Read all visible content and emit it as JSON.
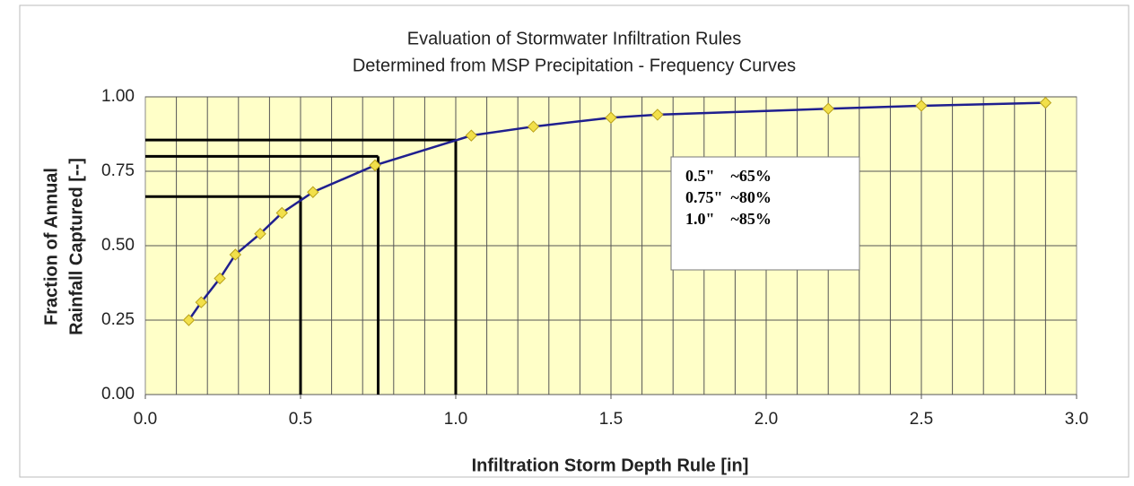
{
  "chart_data": {
    "type": "line",
    "title": [
      "Evaluation of Stormwater Infiltration Rules",
      "Determined from MSP Precipitation - Frequency Curves"
    ],
    "x_label": "Infiltration Storm Depth Rule [in]",
    "y_label": [
      "Fraction of Annual",
      "Rainfall Captured [--]"
    ],
    "series": [
      {
        "color": "#1f1f8f",
        "marker_color": "#f2e04a",
        "x": [
          0.14,
          0.18,
          0.24,
          0.29,
          0.37,
          0.44,
          0.54,
          0.74,
          1.05,
          1.25,
          1.5,
          1.65,
          2.2,
          2.5,
          2.9
        ],
        "values": [
          0.25,
          0.31,
          0.39,
          0.47,
          0.54,
          0.61,
          0.68,
          0.77,
          0.87,
          0.9,
          0.93,
          0.94,
          0.96,
          0.97,
          0.98
        ]
      }
    ],
    "reference_lines": [
      {
        "x": 0.5,
        "y": 0.665
      },
      {
        "x": 0.75,
        "y": 0.8
      },
      {
        "x": 1.0,
        "y": 0.855
      }
    ],
    "annotations": [
      "0.5\"    ~65%",
      "0.75\"  ~80%",
      "1.0\"    ~85%"
    ],
    "xlim": [
      0,
      3
    ],
    "ylim": [
      0,
      1
    ],
    "xticks": [
      {
        "value": 0,
        "label": "0.0"
      },
      0.5,
      {
        "value": 1,
        "label": "1.0"
      },
      1.5,
      {
        "value": 2,
        "label": "2.0"
      },
      2.5,
      {
        "value": 3,
        "label": "3.0"
      }
    ],
    "yticks": [
      {
        "value": 0,
        "label": "0.00"
      },
      0.25,
      {
        "value": 0.5,
        "label": "0.50"
      },
      0.75,
      {
        "value": 1,
        "label": "1.00"
      }
    ],
    "x_minor_grid": 0.1,
    "grid": true,
    "background": "#ffffc8"
  }
}
